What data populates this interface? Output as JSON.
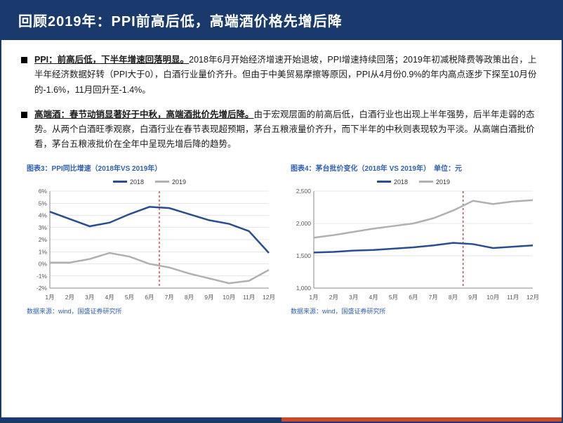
{
  "header": {
    "title": "回顾2019年：PPI前高后低，高端酒价格先增后降"
  },
  "bullets": [
    {
      "lead": "PPI：前高后低，下半年增速回落明显。",
      "body": "2018年6月开始经济增速开始退坡，PPI增速持续回落；2019年初减税降费等政策出台，上半年经济数据好转（PPI大于0），白酒行业量价齐升。但由于中美贸易摩擦等原因，PPI从4月份0.9%的年内高点逐步下探至10月份的-1.6%，11月回升至-1.4%。"
    },
    {
      "lead": "高端酒：春节动销显著好于中秋，高端酒批价先增后降。",
      "body": "由于宏观层面的前高后低，白酒行业也出现上半年强势，后半年走弱的态势。从两个白酒旺季观察，白酒行业在春节表现超预期，茅台五粮液量价齐升，而下半年的中秋则表现较为平淡。从高端白酒批价看，茅台五粮液批价在全年中呈现先增后降的趋势。"
    }
  ],
  "chart_left": {
    "title": "图表3：PPI同比增速（2018年VS 2019年）",
    "source": "数据来源：wind，国盛证券研究所",
    "legend_2018": "2018",
    "legend_2019": "2019",
    "type": "line",
    "months": [
      "1月",
      "2月",
      "3月",
      "4月",
      "5月",
      "6月",
      "7月",
      "8月",
      "9月",
      "10月",
      "11月",
      "12月"
    ],
    "series_2018": [
      4.3,
      3.7,
      3.1,
      3.4,
      4.1,
      4.7,
      4.6,
      4.1,
      3.6,
      3.3,
      2.7,
      0.9
    ],
    "series_2019": [
      0.1,
      0.1,
      0.4,
      0.9,
      0.6,
      0.0,
      -0.3,
      -0.8,
      -1.2,
      -1.6,
      -1.4,
      -0.5
    ],
    "ylim": [
      -2,
      6
    ],
    "ytick_step": 1,
    "y_format": "percent",
    "vline_after_index": 5,
    "colors": {
      "s2018": "#2a4d8f",
      "s2019": "#b0b0b0",
      "grid": "#cccccc",
      "vline": "#d02020",
      "background": "#ffffff"
    },
    "line_width": 2.5
  },
  "chart_right": {
    "title": "图表4：茅台批价变化（2018年 VS 2019年）　单位：元",
    "source": "数据来源：wind，国盛证券研究所",
    "legend_2018": "2018",
    "legend_2019": "2019",
    "type": "line",
    "months": [
      "1月",
      "2月",
      "3月",
      "4月",
      "5月",
      "6月",
      "7月",
      "8月",
      "9月",
      "10月",
      "11月",
      "12月"
    ],
    "series_2018": [
      1550,
      1560,
      1580,
      1590,
      1610,
      1630,
      1660,
      1700,
      1680,
      1620,
      1640,
      1660
    ],
    "series_2019": [
      1780,
      1820,
      1870,
      1920,
      1960,
      2000,
      2080,
      2200,
      2350,
      2300,
      2340,
      2360
    ],
    "ylim": [
      1000,
      2500
    ],
    "ytick_step": 500,
    "y_format": "number",
    "vline_after_index": 7,
    "colors": {
      "s2018": "#2a4d8f",
      "s2019": "#b0b0b0",
      "grid": "#cccccc",
      "vline": "#d02020",
      "background": "#ffffff"
    },
    "line_width": 2.5
  }
}
